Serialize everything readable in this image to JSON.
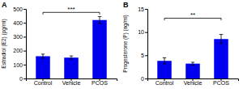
{
  "chart_data": [
    {
      "type": "bar",
      "title": "A",
      "categories": [
        "Control",
        "Vehicle",
        "PCOS"
      ],
      "values": [
        160,
        150,
        420
      ],
      "errors": [
        15,
        12,
        25
      ],
      "ylabel": "Estradiol (E2) (pg/ml)",
      "ylim": [
        0,
        500
      ],
      "yticks": [
        0,
        100,
        200,
        300,
        400,
        500
      ],
      "color": "#0000ee",
      "annotations": [
        {
          "text": "***",
          "x1": "Control",
          "x2": "PCOS",
          "y": 475
        }
      ]
    },
    {
      "type": "bar",
      "title": "B",
      "categories": [
        "Control",
        "Vehicle",
        "PCOS"
      ],
      "values": [
        3.8,
        3.2,
        8.5
      ],
      "errors": [
        0.65,
        0.3,
        1.0
      ],
      "ylabel": "Progesterone (P) (ng/ml)",
      "ylim": [
        0,
        15
      ],
      "yticks": [
        0,
        5,
        10,
        15
      ],
      "color": "#0000ee",
      "annotations": [
        {
          "text": "**",
          "x1": "Control",
          "x2": "PCOS",
          "y": 13.0
        }
      ]
    }
  ]
}
